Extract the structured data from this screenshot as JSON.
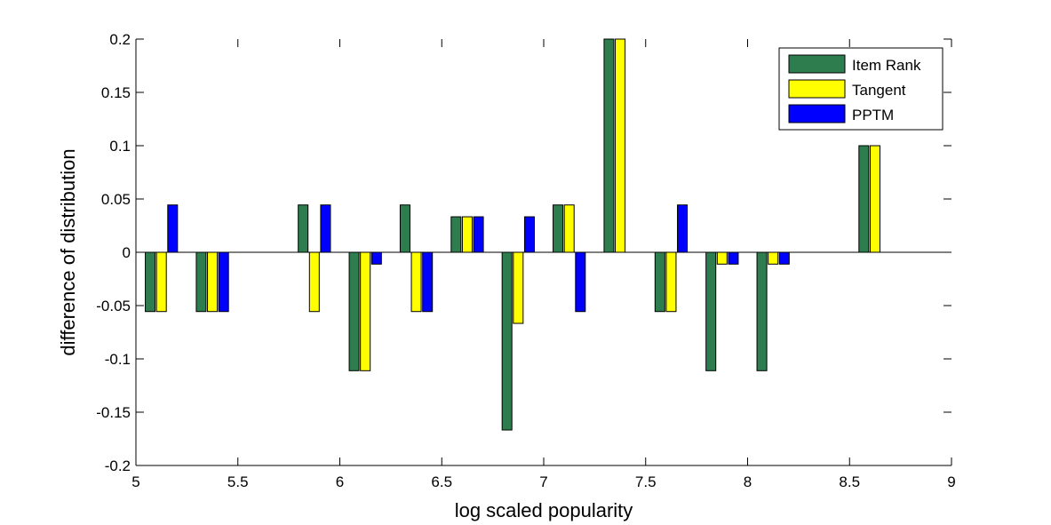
{
  "chart_data": {
    "type": "bar",
    "title": "",
    "xlabel": "log scaled popularity",
    "ylabel": "difference of distribution",
    "xlim": [
      5,
      9
    ],
    "ylim": [
      -0.2,
      0.2
    ],
    "xticks": [
      5,
      5.5,
      6,
      6.5,
      7,
      7.5,
      8,
      8.5,
      9
    ],
    "xtick_labels": [
      "5",
      "5.5",
      "6",
      "6.5",
      "7",
      "7.5",
      "8",
      "8.5",
      "9"
    ],
    "yticks": [
      -0.2,
      -0.15,
      -0.1,
      -0.05,
      0,
      0.05,
      0.1,
      0.15,
      0.2
    ],
    "ytick_labels": [
      "-0.2",
      "-0.15",
      "-0.1",
      "-0.05",
      "0",
      "0.05",
      "0.1",
      "0.15",
      "0.2"
    ],
    "grid": false,
    "legend_position": "top-right",
    "x": [
      5.125,
      5.375,
      5.875,
      6.125,
      6.375,
      6.625,
      6.875,
      7.125,
      7.375,
      7.625,
      7.875,
      8.125,
      8.625
    ],
    "series": [
      {
        "name": "Item Rank",
        "color": "#2e7d4f",
        "values": [
          -0.0556,
          -0.0556,
          0.0444,
          -0.1111,
          0.0444,
          0.0333,
          -0.1667,
          0.0444,
          0.2,
          -0.0556,
          -0.1111,
          -0.1111,
          0.1
        ]
      },
      {
        "name": "Tangent",
        "color": "#ffff00",
        "values": [
          -0.0556,
          -0.0556,
          -0.0556,
          -0.1111,
          -0.0556,
          0.0333,
          -0.0667,
          0.0444,
          0.2,
          -0.0556,
          -0.0111,
          -0.0111,
          0.1
        ]
      },
      {
        "name": "PPTM",
        "color": "#0000ff",
        "values": [
          0.0444,
          -0.0556,
          0.0444,
          -0.0111,
          -0.0556,
          0.0333,
          0.0333,
          -0.0556,
          0,
          0.0444,
          -0.0111,
          -0.0111,
          0
        ]
      }
    ]
  }
}
